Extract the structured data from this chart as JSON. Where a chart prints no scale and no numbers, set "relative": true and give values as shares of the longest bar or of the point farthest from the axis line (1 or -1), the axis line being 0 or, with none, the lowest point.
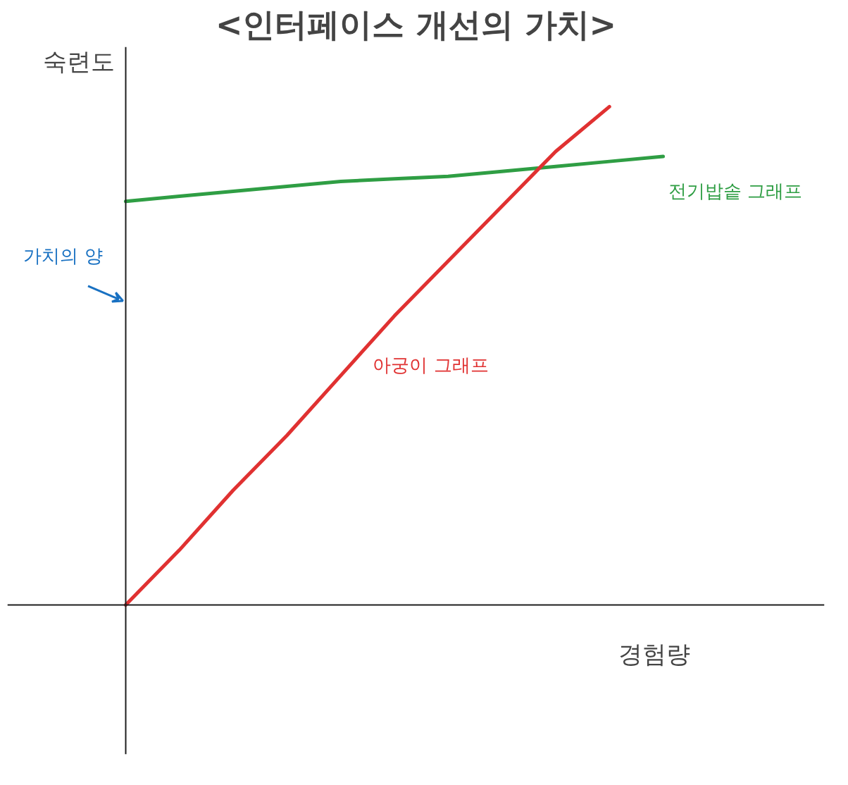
{
  "chart_data": {
    "type": "line",
    "title": "<인터페이스 개선의 가치>",
    "xlabel": "경험량",
    "ylabel": "숙련도",
    "relative": true,
    "categories": [
      null,
      null,
      null,
      null,
      null,
      null,
      null,
      null,
      null,
      null,
      null
    ],
    "series": [
      {
        "name": "전기밥솥 그래프",
        "color": "#2f9e44",
        "values": [
          0.81,
          0.82,
          0.83,
          0.84,
          0.85,
          0.855,
          0.86,
          0.87,
          0.88,
          0.89,
          0.9
        ]
      },
      {
        "name": "아궁이 그래프",
        "color": "#e03131",
        "values": [
          0.0,
          0.11,
          0.23,
          0.34,
          0.46,
          0.58,
          0.69,
          0.8,
          0.91,
          1.0,
          null
        ]
      }
    ],
    "annotations": [
      "가치의 양"
    ]
  }
}
